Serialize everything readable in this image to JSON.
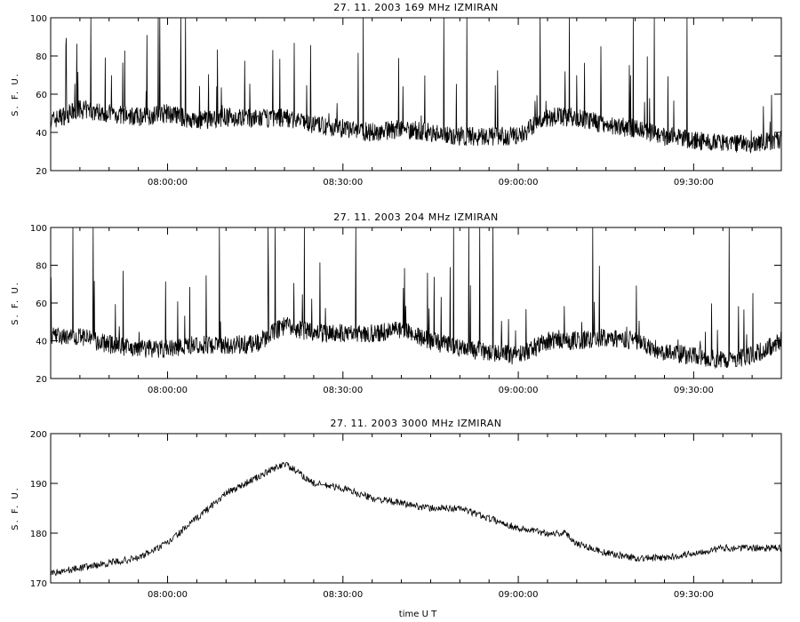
{
  "xlabel": "time  U T",
  "ylabel": "S. F. U.",
  "x_tick_labels": [
    "08:00:00",
    "08:30:00",
    "09:00:00",
    "09:30:00"
  ],
  "chart_data": [
    {
      "type": "line",
      "title": "27. 11. 2003   169 MHz   IZMIRAN",
      "xlabel": "",
      "ylabel": "S. F. U.",
      "xlim": [
        "07:40:00",
        "09:45:00"
      ],
      "ylim": [
        20,
        100
      ],
      "y_ticks": [
        20,
        40,
        60,
        80,
        100
      ],
      "x_ticks": [
        "08:00:00",
        "08:30:00",
        "09:00:00",
        "09:30:00"
      ],
      "series": [
        {
          "x": [
            "07:40:00",
            "07:45:00",
            "07:50:00",
            "07:55:00",
            "08:00:00",
            "08:05:00",
            "08:10:00",
            "08:15:00",
            "08:20:00",
            "08:25:00",
            "08:30:00",
            "08:35:00",
            "08:40:00",
            "08:45:00",
            "08:50:00",
            "08:55:00",
            "09:00:00",
            "09:05:00",
            "09:10:00",
            "09:15:00",
            "09:20:00",
            "09:25:00",
            "09:30:00",
            "09:35:00",
            "09:40:00",
            "09:45:00"
          ],
          "values": [
            46,
            52,
            50,
            48,
            50,
            46,
            48,
            47,
            48,
            44,
            42,
            40,
            42,
            40,
            38,
            38,
            38,
            48,
            48,
            44,
            42,
            38,
            36,
            34,
            34,
            36
          ]
        }
      ],
      "grid": false
    },
    {
      "type": "line",
      "title": "27. 11. 2003   204 MHz   IZMIRAN",
      "xlabel": "",
      "ylabel": "S. F. U.",
      "xlim": [
        "07:40:00",
        "09:45:00"
      ],
      "ylim": [
        20,
        100
      ],
      "y_ticks": [
        20,
        40,
        60,
        80,
        100
      ],
      "x_ticks": [
        "08:00:00",
        "08:30:00",
        "09:00:00",
        "09:30:00"
      ],
      "series": [
        {
          "x": [
            "07:40:00",
            "07:45:00",
            "07:50:00",
            "07:55:00",
            "08:00:00",
            "08:05:00",
            "08:10:00",
            "08:15:00",
            "08:20:00",
            "08:25:00",
            "08:30:00",
            "08:35:00",
            "08:40:00",
            "08:45:00",
            "08:50:00",
            "08:55:00",
            "09:00:00",
            "09:05:00",
            "09:10:00",
            "09:15:00",
            "09:20:00",
            "09:25:00",
            "09:30:00",
            "09:35:00",
            "09:40:00",
            "09:45:00"
          ],
          "values": [
            42,
            42,
            38,
            36,
            36,
            38,
            38,
            38,
            48,
            44,
            44,
            44,
            46,
            40,
            36,
            34,
            32,
            40,
            40,
            42,
            40,
            34,
            32,
            30,
            32,
            40
          ]
        }
      ],
      "grid": false
    },
    {
      "type": "line",
      "title": "27. 11. 2003   3000 MHz   IZMIRAN",
      "xlabel": "time  U T",
      "ylabel": "S. F. U.",
      "xlim": [
        "07:40:00",
        "09:45:00"
      ],
      "ylim": [
        170,
        200
      ],
      "y_ticks": [
        170,
        180,
        190,
        200
      ],
      "x_ticks": [
        "08:00:00",
        "08:30:00",
        "09:00:00",
        "09:30:00"
      ],
      "series": [
        {
          "x": [
            "07:40:00",
            "07:45:00",
            "07:50:00",
            "07:55:00",
            "08:00:00",
            "08:05:00",
            "08:10:00",
            "08:15:00",
            "08:20:00",
            "08:25:00",
            "08:30:00",
            "08:35:00",
            "08:40:00",
            "08:45:00",
            "08:50:00",
            "08:55:00",
            "09:00:00",
            "09:05:00",
            "09:08:00",
            "09:10:00",
            "09:15:00",
            "09:20:00",
            "09:25:00",
            "09:30:00",
            "09:35:00",
            "09:40:00",
            "09:45:00"
          ],
          "values": [
            172,
            173,
            174,
            175,
            178,
            183,
            188,
            191,
            194,
            190,
            189,
            187,
            186,
            185,
            185,
            183,
            181,
            180,
            180,
            178,
            176,
            175,
            175,
            176,
            177,
            177,
            177
          ]
        }
      ],
      "grid": false
    }
  ]
}
